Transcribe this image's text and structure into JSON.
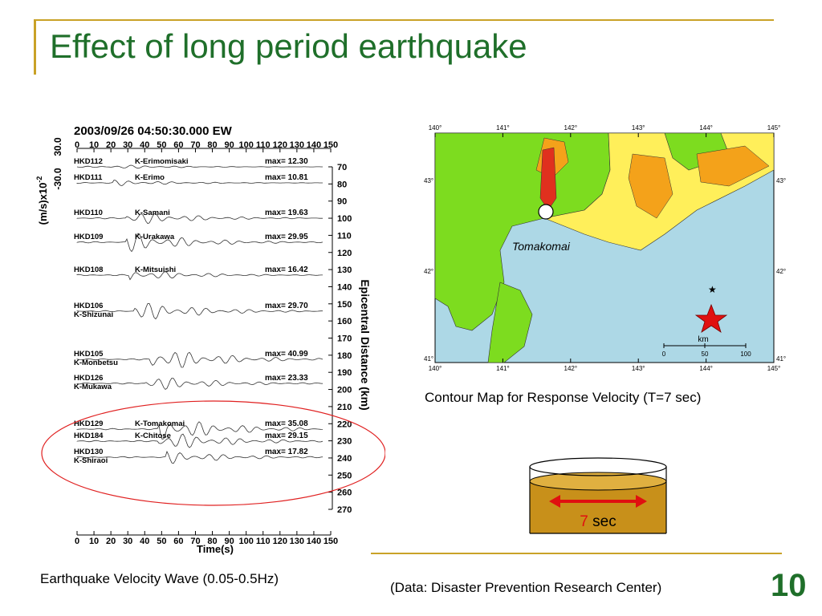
{
  "slide": {
    "title": "Effect of long period earthquake",
    "page_number": "10",
    "data_source": "(Data: Disaster Prevention Research Center)"
  },
  "seismogram": {
    "header": "2003/09/26 04:50:30.000  EW",
    "y_axis_label": "(m/s)x10",
    "y_axis_exponent": "-2",
    "y_axis_top": "30.0",
    "y_axis_bottom": "-30.0",
    "time_ticks": [
      "0",
      "10",
      "20",
      "30",
      "40",
      "50",
      "60",
      "70",
      "80",
      "90",
      "100",
      "110",
      "120",
      "130",
      "140",
      "150"
    ],
    "time_label": "Time(s)",
    "distance_label": "Epicentral Distance (km)",
    "distance_ticks": [
      "70",
      "80",
      "90",
      "100",
      "110",
      "120",
      "130",
      "140",
      "150",
      "160",
      "170",
      "180",
      "190",
      "200",
      "210",
      "220",
      "230",
      "240",
      "250",
      "260",
      "270"
    ],
    "traces": [
      {
        "code": "HKD112",
        "place": "K-Erimomisaki",
        "max": "max= 12.30"
      },
      {
        "code": "HKD111",
        "place": "K-Erimo",
        "max": "max= 10.81"
      },
      {
        "code": "HKD110",
        "place": "K-Samani",
        "max": "max= 19.63"
      },
      {
        "code": "HKD109",
        "place": "K-Urakawa",
        "max": "max= 29.95"
      },
      {
        "code": "HKD108",
        "place": "K-Mitsuishi",
        "max": "max= 16.42"
      },
      {
        "code": "HKD106",
        "place": "K-Shizunai",
        "max": "max= 29.70"
      },
      {
        "code": "HKD105",
        "place": "K-Monbetsu",
        "max": "max= 40.99"
      },
      {
        "code": "HKD126",
        "place": "K-Mukawa",
        "max": "max= 23.33"
      },
      {
        "code": "HKD129",
        "place": "K-Tomakomai",
        "max": "max= 35.08"
      },
      {
        "code": "HKD184",
        "place": "K-Chitose",
        "max": "max= 29.15"
      },
      {
        "code": "HKD130",
        "place": "K-Shiraoi",
        "max": "max= 17.82"
      }
    ],
    "caption": "Earthquake  Velocity Wave (0.05-0.5Hz)"
  },
  "map": {
    "lon_ticks": [
      "140°",
      "141°",
      "142°",
      "143°",
      "144°",
      "145°"
    ],
    "lat_ticks": [
      "43°",
      "42°",
      "41°"
    ],
    "city_label": "Tomakomai",
    "scale_unit": "km",
    "scale_ticks": [
      "0",
      "50",
      "100"
    ],
    "caption": "Contour Map for Response Velocity (T=7 sec)"
  },
  "tank": {
    "period_value": "7",
    "period_unit": " sec"
  },
  "colors": {
    "title_green": "#1f6f2a",
    "accent_gold": "#c9a227",
    "sea": "#add8e6",
    "land_green": "#7ddc1f",
    "land_yellow": "#ffef5a",
    "land_orange": "#f4a21a",
    "hot_red": "#e0301e",
    "tank_fill": "#c8901a",
    "arrow_red": "#e01010"
  }
}
